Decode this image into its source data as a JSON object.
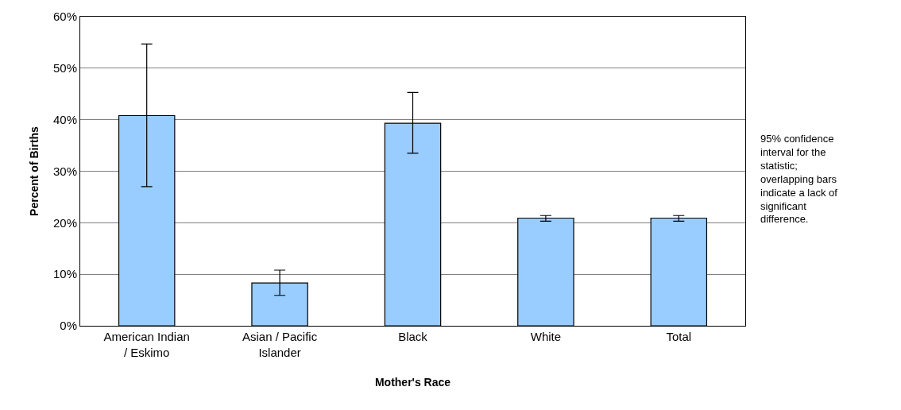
{
  "chart_data": {
    "type": "bar",
    "xlabel": "Mother's Race",
    "ylabel": "Percent of Births",
    "categories": [
      "American Indian / Eskimo",
      "Asian / Pacific Islander",
      "Black",
      "White",
      "Total"
    ],
    "values": [
      40.8,
      8.3,
      39.3,
      20.9,
      20.9
    ],
    "errors": [
      [
        27.0,
        54.7
      ],
      [
        5.9,
        10.8
      ],
      [
        33.5,
        45.3
      ],
      [
        20.3,
        21.4
      ],
      [
        20.3,
        21.4
      ]
    ],
    "color": "#99ccff",
    "ylim": [
      0,
      60
    ],
    "yticks": [
      {
        "value": 0,
        "label": "0%"
      },
      {
        "value": 10,
        "label": "10%"
      },
      {
        "value": 20,
        "label": "20%"
      },
      {
        "value": 30,
        "label": "30%"
      },
      {
        "value": 40,
        "label": "40%"
      },
      {
        "value": 50,
        "label": "50%"
      },
      {
        "value": 60,
        "label": "60%"
      }
    ],
    "grid": "y",
    "legend": false,
    "annotations": [
      "95% confidence interval for the statistic; overlapping bars indicate a lack of significant difference."
    ]
  }
}
